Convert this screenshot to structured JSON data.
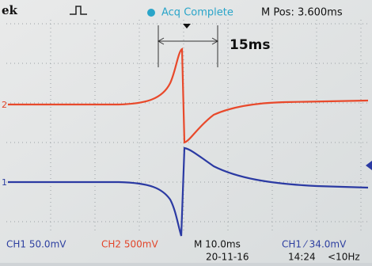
{
  "header": {
    "brand": "ek",
    "status": "Acq Complete",
    "position": "M Pos: 3.600ms"
  },
  "annotation": "15ms",
  "markers": {
    "ch2": "2",
    "ch1": "1"
  },
  "footer": {
    "ch1": "CH1 50.0mV",
    "ch2": "CH2 500mV",
    "timebase": "M 10.0ms",
    "trigger": "CH1 ⁄ 34.0mV",
    "date": "20-11-16",
    "time": "14:24",
    "filter": "<10Hz"
  }
}
